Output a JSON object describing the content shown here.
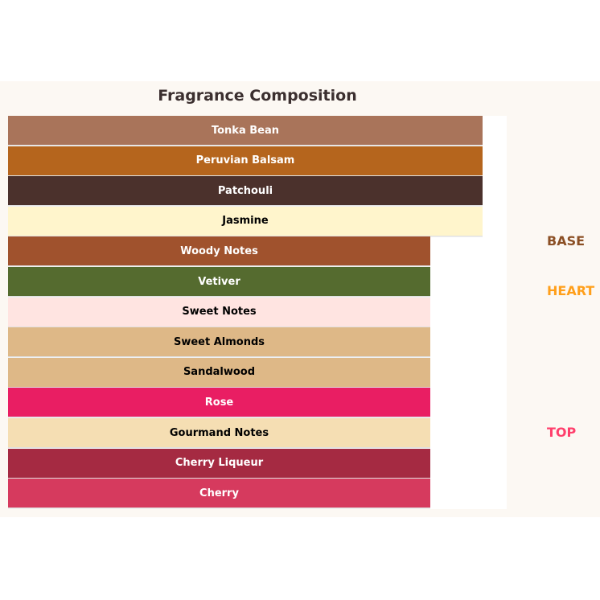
{
  "title": "Fragrance Composition",
  "layers": [
    {
      "label": "Tonka Bean",
      "color": "#a9745a",
      "text_color": "#ffffff"
    },
    {
      "label": "Peruvian Balsam",
      "color": "#b5651d",
      "text_color": "#ffffff"
    },
    {
      "label": "Patchouli",
      "color": "#4b312c",
      "text_color": "#ffffff"
    },
    {
      "label": "Jasmine",
      "color": "#fff5cc",
      "text_color": "#000000"
    },
    {
      "label": "Woody Notes",
      "color": "#a0522d",
      "text_color": "#ffffff"
    },
    {
      "label": "Vetiver",
      "color": "#556b2f",
      "text_color": "#ffffff"
    },
    {
      "label": "Sweet Notes",
      "color": "#ffe4e1",
      "text_color": "#000000"
    },
    {
      "label": "Sweet Almonds",
      "color": "#deb887",
      "text_color": "#000000"
    },
    {
      "label": "Sandalwood",
      "color": "#deb887",
      "text_color": "#000000"
    },
    {
      "label": "Rose",
      "color": "#e91e63",
      "text_color": "#ffffff"
    },
    {
      "label": "Gourmand Notes",
      "color": "#f5deb3",
      "text_color": "#000000"
    },
    {
      "label": "Cherry Liqueur",
      "color": "#a52a42",
      "text_color": "#ffffff"
    },
    {
      "label": "Cherry",
      "color": "#d63a5e",
      "text_color": "#ffffff"
    }
  ],
  "tiers": [
    {
      "label": "BASE",
      "color": "#8b4f24"
    },
    {
      "label": "HEART",
      "color": "#ff9f1a"
    },
    {
      "label": "TOP",
      "color": "#ff3f6c"
    }
  ]
}
